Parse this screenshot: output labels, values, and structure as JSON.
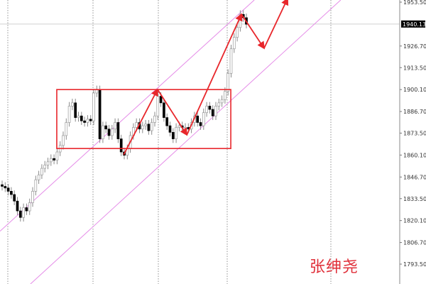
{
  "chart_data": {
    "type": "candlestick",
    "title": "",
    "y_axis": {
      "position": "right",
      "ticks": [
        "1953.50",
        "1940.13",
        "1926.70",
        "1913.50",
        "1900.10",
        "1886.70",
        "1873.50",
        "1860.10",
        "1846.70",
        "1833.50",
        "1820.10",
        "1806.70",
        "1793.50"
      ],
      "range": [
        1785,
        1955
      ]
    },
    "current_price": "1940.13",
    "current_price_value": 1940.13,
    "grid": "vertical dotted separators",
    "open_first": 1842,
    "close": [
      1841,
      1840,
      1838,
      1836,
      1832,
      1826,
      1822,
      1828,
      1826,
      1831,
      1838,
      1845,
      1848,
      1852,
      1854,
      1856,
      1858,
      1857,
      1862,
      1866,
      1872,
      1880,
      1890,
      1892,
      1883,
      1884,
      1881,
      1880,
      1882,
      1881,
      1898,
      1900,
      1870,
      1878,
      1876,
      1872,
      1876,
      1880,
      1870,
      1862,
      1860,
      1864,
      1872,
      1877,
      1880,
      1876,
      1878,
      1879,
      1875,
      1880,
      1884,
      1896,
      1892,
      1883,
      1878,
      1874,
      1870,
      1877,
      1878,
      1877,
      1877,
      1876,
      1880,
      1884,
      1880,
      1878,
      1886,
      1890,
      1888,
      1884,
      1890,
      1892,
      1894,
      1899,
      1910,
      1925,
      1932,
      1938,
      1946,
      1944,
      1940
    ],
    "colors": {
      "bull": "#ffffff",
      "bull_border": "#9a9a9a",
      "bear": "#000000",
      "box": "#e8262b",
      "zigzag": "#e8262b",
      "channel": "#e58ce8"
    },
    "rectangle": {
      "from_index": 17.9,
      "to_index": 74.9,
      "top": 1900.1,
      "bottom": 1864.1
    },
    "zigzag": [
      [
        39.8,
        1860.3
      ],
      [
        50.9,
        1900.2
      ],
      [
        60.5,
        1872.4
      ],
      [
        78.4,
        1946.1
      ],
      [
        85.8,
        1925.3
      ],
      [
        93.5,
        1955.7
      ]
    ],
    "channel": {
      "lower": [
        [
          9.3,
          1781.4
        ],
        [
          110.9,
          1954.8
        ]
      ],
      "upper": [
        [
          57,
          1911.4
        ],
        [
          82.6,
          1954.8
        ]
      ]
    }
  },
  "watermark": "张绅尧"
}
